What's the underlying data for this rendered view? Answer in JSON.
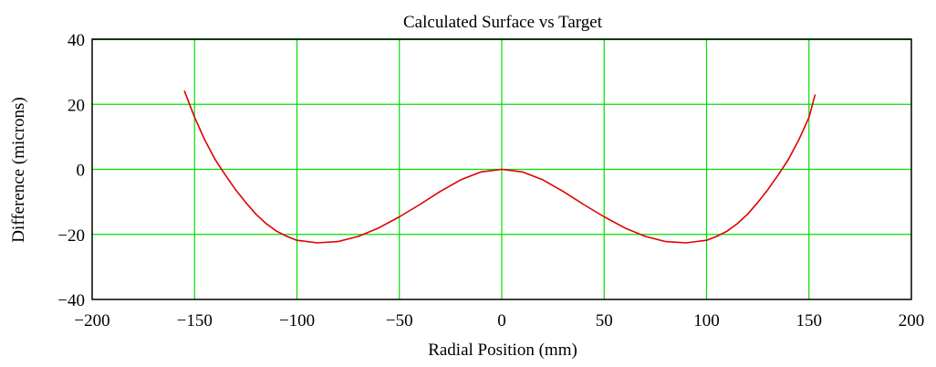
{
  "chart_data": {
    "type": "line",
    "title": "Calculated Surface vs Target",
    "xlabel": "Radial Position (mm)",
    "ylabel": "Difference (microns)",
    "xlim": [
      -200,
      200
    ],
    "ylim": [
      -40,
      40
    ],
    "x_ticks": [
      -200,
      -150,
      -100,
      -50,
      0,
      50,
      100,
      150,
      200
    ],
    "y_ticks": [
      -40,
      -20,
      0,
      20,
      40
    ],
    "x_tick_labels": [
      "−200",
      "−150",
      "−100",
      "−50",
      "0",
      "50",
      "100",
      "150",
      "200"
    ],
    "y_tick_labels": [
      "−40",
      "−20",
      "0",
      "20",
      "40"
    ],
    "grid": true,
    "grid_color": "#00e000",
    "line_color": "#e00000",
    "series": [
      {
        "x": [
          -155,
          -150,
          -145,
          -140,
          -135,
          -130,
          -125,
          -120,
          -115,
          -110,
          -105,
          -100,
          -90,
          -80,
          -70,
          -60,
          -50,
          -40,
          -30,
          -20,
          -10,
          0,
          10,
          20,
          30,
          40,
          50,
          60,
          70,
          80,
          90,
          100,
          105,
          110,
          115,
          120,
          125,
          130,
          135,
          140,
          145,
          150,
          153
        ],
        "y": [
          24.2,
          16.0,
          9.0,
          3.1,
          -1.7,
          -6.2,
          -10.2,
          -13.8,
          -16.7,
          -19.0,
          -20.6,
          -21.8,
          -22.6,
          -22.2,
          -20.6,
          -18.0,
          -14.6,
          -10.8,
          -6.8,
          -3.2,
          -0.8,
          0.0,
          -0.8,
          -3.2,
          -6.8,
          -10.8,
          -14.6,
          -18.0,
          -20.6,
          -22.2,
          -22.6,
          -21.8,
          -20.6,
          -19.0,
          -16.7,
          -13.8,
          -10.2,
          -6.2,
          -1.7,
          3.1,
          9.0,
          16.0,
          23.0
        ]
      }
    ]
  }
}
